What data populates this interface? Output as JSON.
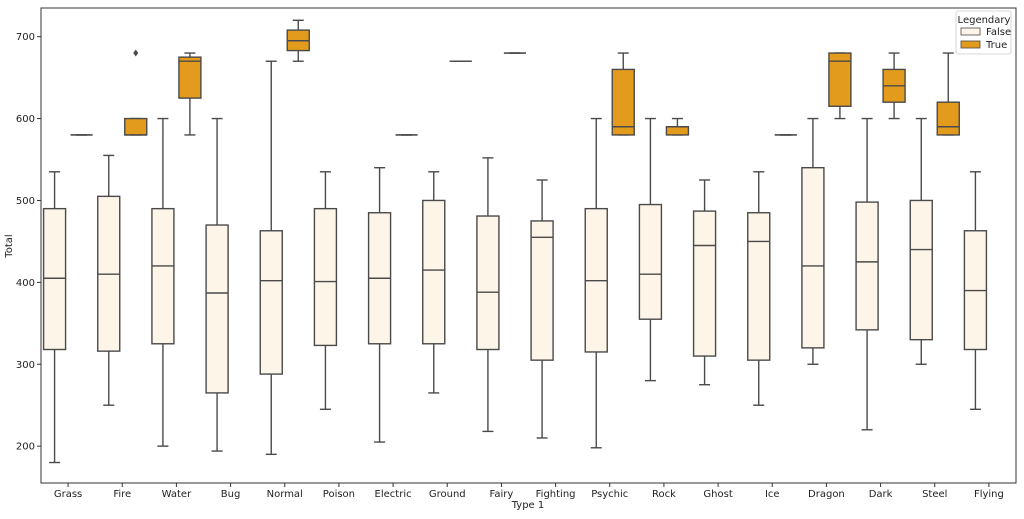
{
  "chart_data": {
    "type": "boxplot",
    "xlabel": "Type 1",
    "ylabel": "Total",
    "ylim": [
      155,
      735
    ],
    "yticks": [
      200,
      300,
      400,
      500,
      600,
      700
    ],
    "categories": [
      "Grass",
      "Fire",
      "Water",
      "Bug",
      "Normal",
      "Poison",
      "Electric",
      "Ground",
      "Fairy",
      "Fighting",
      "Psychic",
      "Rock",
      "Ghost",
      "Ice",
      "Dragon",
      "Dark",
      "Steel",
      "Flying"
    ],
    "legend": {
      "title": "Legendary",
      "placement": "top-right",
      "entries": [
        "False",
        "True"
      ]
    },
    "colors": {
      "false_fill": "#fdf5e8",
      "true_fill": "#e39b1e",
      "line": "#4a4a4a"
    },
    "series": [
      {
        "name": "False",
        "boxes": [
          {
            "category": "Grass",
            "whislo": 180,
            "q1": 318,
            "med": 405,
            "q3": 490,
            "whishi": 535,
            "fliers": []
          },
          {
            "category": "Fire",
            "whislo": 250,
            "q1": 316,
            "med": 410,
            "q3": 505,
            "whishi": 555,
            "fliers": []
          },
          {
            "category": "Water",
            "whislo": 200,
            "q1": 325,
            "med": 420,
            "q3": 490,
            "whishi": 600,
            "fliers": []
          },
          {
            "category": "Bug",
            "whislo": 194,
            "q1": 265,
            "med": 387,
            "q3": 470,
            "whishi": 600,
            "fliers": []
          },
          {
            "category": "Normal",
            "whislo": 190,
            "q1": 288,
            "med": 402,
            "q3": 463,
            "whishi": 670,
            "fliers": []
          },
          {
            "category": "Poison",
            "whislo": 245,
            "q1": 323,
            "med": 401,
            "q3": 490,
            "whishi": 535,
            "fliers": []
          },
          {
            "category": "Electric",
            "whislo": 205,
            "q1": 325,
            "med": 405,
            "q3": 485,
            "whishi": 540,
            "fliers": []
          },
          {
            "category": "Ground",
            "whislo": 265,
            "q1": 325,
            "med": 415,
            "q3": 500,
            "whishi": 535,
            "fliers": []
          },
          {
            "category": "Fairy",
            "whislo": 218,
            "q1": 318,
            "med": 388,
            "q3": 481,
            "whishi": 552,
            "fliers": []
          },
          {
            "category": "Fighting",
            "whislo": 210,
            "q1": 305,
            "med": 455,
            "q3": 475,
            "whishi": 525,
            "fliers": []
          },
          {
            "category": "Psychic",
            "whislo": 198,
            "q1": 315,
            "med": 402,
            "q3": 490,
            "whishi": 600,
            "fliers": []
          },
          {
            "category": "Rock",
            "whislo": 280,
            "q1": 355,
            "med": 410,
            "q3": 495,
            "whishi": 600,
            "fliers": []
          },
          {
            "category": "Ghost",
            "whislo": 275,
            "q1": 310,
            "med": 445,
            "q3": 487,
            "whishi": 525,
            "fliers": []
          },
          {
            "category": "Ice",
            "whislo": 250,
            "q1": 305,
            "med": 450,
            "q3": 485,
            "whishi": 535,
            "fliers": []
          },
          {
            "category": "Dragon",
            "whislo": 300,
            "q1": 320,
            "med": 420,
            "q3": 540,
            "whishi": 600,
            "fliers": []
          },
          {
            "category": "Dark",
            "whislo": 220,
            "q1": 342,
            "med": 425,
            "q3": 498,
            "whishi": 600,
            "fliers": []
          },
          {
            "category": "Steel",
            "whislo": 300,
            "q1": 330,
            "med": 440,
            "q3": 500,
            "whishi": 600,
            "fliers": []
          },
          {
            "category": "Flying",
            "whislo": 245,
            "q1": 318,
            "med": 390,
            "q3": 463,
            "whishi": 535,
            "fliers": []
          }
        ]
      },
      {
        "name": "True",
        "boxes": [
          {
            "category": "Grass",
            "whislo": 580,
            "q1": 580,
            "med": 580,
            "q3": 580,
            "whishi": 580,
            "fliers": []
          },
          {
            "category": "Fire",
            "whislo": 580,
            "q1": 580,
            "med": 580,
            "q3": 600,
            "whishi": 600,
            "fliers": [
              680
            ]
          },
          {
            "category": "Water",
            "whislo": 580,
            "q1": 625,
            "med": 670,
            "q3": 675,
            "whishi": 680,
            "fliers": []
          },
          {
            "category": "Normal",
            "whislo": 670,
            "q1": 683,
            "med": 695,
            "q3": 708,
            "whishi": 720,
            "fliers": []
          },
          {
            "category": "Electric",
            "whislo": 580,
            "q1": 580,
            "med": 580,
            "q3": 580,
            "whishi": 580,
            "fliers": []
          },
          {
            "category": "Ground",
            "whislo": 670,
            "q1": 670,
            "med": 670,
            "q3": 670,
            "whishi": 670,
            "fliers": []
          },
          {
            "category": "Fairy",
            "whislo": 680,
            "q1": 680,
            "med": 680,
            "q3": 680,
            "whishi": 680,
            "fliers": []
          },
          {
            "category": "Psychic",
            "whislo": 580,
            "q1": 580,
            "med": 590,
            "q3": 660,
            "whishi": 680,
            "fliers": []
          },
          {
            "category": "Rock",
            "whislo": 580,
            "q1": 580,
            "med": 590,
            "q3": 590,
            "whishi": 600,
            "fliers": []
          },
          {
            "category": "Ice",
            "whislo": 580,
            "q1": 580,
            "med": 580,
            "q3": 580,
            "whishi": 580,
            "fliers": []
          },
          {
            "category": "Dragon",
            "whislo": 600,
            "q1": 615,
            "med": 670,
            "q3": 680,
            "whishi": 680,
            "fliers": []
          },
          {
            "category": "Dark",
            "whislo": 600,
            "q1": 620,
            "med": 640,
            "q3": 660,
            "whishi": 680,
            "fliers": []
          },
          {
            "category": "Steel",
            "whislo": 580,
            "q1": 580,
            "med": 590,
            "q3": 620,
            "whishi": 680,
            "fliers": []
          }
        ]
      }
    ]
  }
}
